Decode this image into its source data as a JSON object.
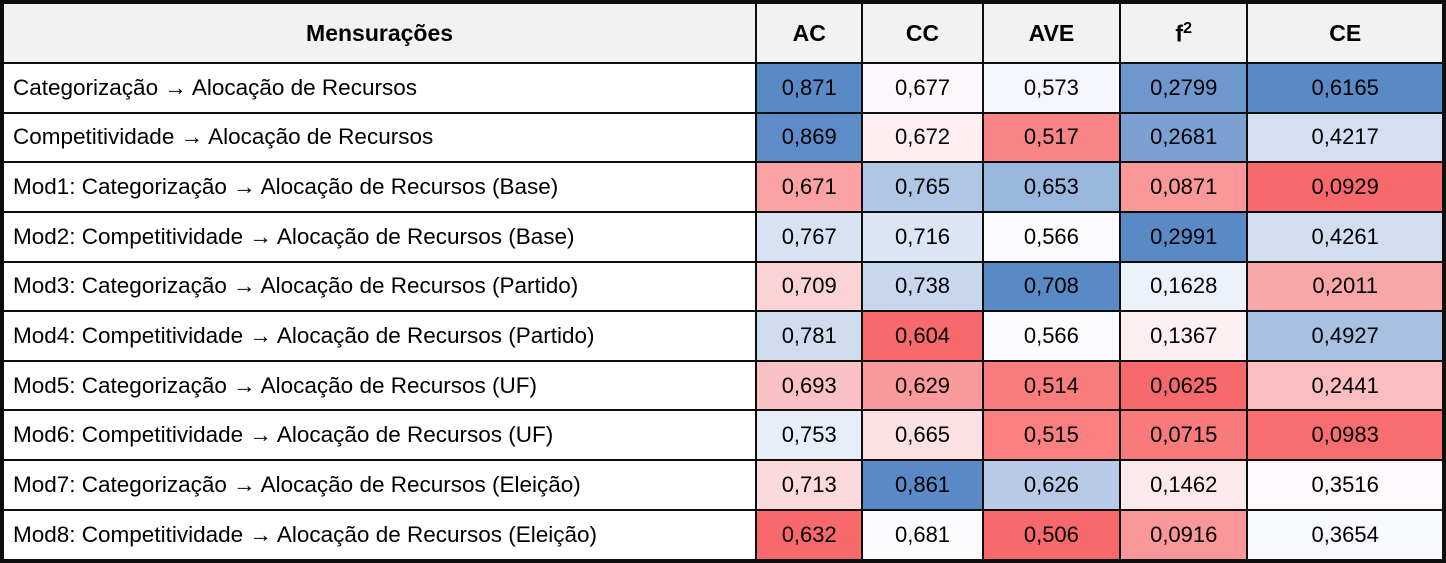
{
  "table": {
    "header": {
      "measure_label": "Mensurações",
      "columns": [
        "AC",
        "CC",
        "AVE",
        "f²",
        "CE"
      ]
    },
    "rows": [
      {
        "label": "Categorização → Alocação de Recursos",
        "cells": [
          {
            "text": "0,871",
            "bg": "#5A8AC6"
          },
          {
            "text": "0,677",
            "bg": "#FCF7FA"
          },
          {
            "text": "0,573",
            "bg": "#F4F6FC"
          },
          {
            "text": "0,2799",
            "bg": "#6E98CD"
          },
          {
            "text": "0,6165",
            "bg": "#5A8AC6"
          }
        ]
      },
      {
        "label": "Competitividade → Alocação de Recursos",
        "cells": [
          {
            "text": "0,869",
            "bg": "#5D8CC8"
          },
          {
            "text": "0,672",
            "bg": "#FCEEF1"
          },
          {
            "text": "0,517",
            "bg": "#F98486"
          },
          {
            "text": "0,2681",
            "bg": "#7BA0D1"
          },
          {
            "text": "0,4217",
            "bg": "#D4E0F1"
          }
        ]
      },
      {
        "label": "Mod1: Categorização → Alocação de Recursos (Base)",
        "cells": [
          {
            "text": "0,671",
            "bg": "#FAA2A4"
          },
          {
            "text": "0,765",
            "bg": "#AFC6E4"
          },
          {
            "text": "0,653",
            "bg": "#99B6DC"
          },
          {
            "text": "0,0871",
            "bg": "#F99799"
          },
          {
            "text": "0,0929",
            "bg": "#F8696B"
          }
        ]
      },
      {
        "label": "Mod2: Competitividade → Alocação de Recursos (Base)",
        "cells": [
          {
            "text": "0,767",
            "bg": "#D8E2F3"
          },
          {
            "text": "0,716",
            "bg": "#DBE5F3"
          },
          {
            "text": "0,566",
            "bg": "#FCFCFF"
          },
          {
            "text": "0,2991",
            "bg": "#5A8AC6"
          },
          {
            "text": "0,4261",
            "bg": "#D2DEF0"
          }
        ]
      },
      {
        "label": "Mod3: Categorização → Alocação de Recursos (Partido)",
        "cells": [
          {
            "text": "0,709",
            "bg": "#FBD3D6"
          },
          {
            "text": "0,738",
            "bg": "#C8D7ED"
          },
          {
            "text": "0,708",
            "bg": "#5A8AC6"
          },
          {
            "text": "0,1628",
            "bg": "#EDF2FA"
          },
          {
            "text": "0,2011",
            "bg": "#F9A6A9"
          }
        ]
      },
      {
        "label": "Mod4: Competitividade → Alocação de Recursos (Partido)",
        "cells": [
          {
            "text": "0,781",
            "bg": "#CFDCEF"
          },
          {
            "text": "0,604",
            "bg": "#F8696B"
          },
          {
            "text": "0,566",
            "bg": "#FCFCFF"
          },
          {
            "text": "0,1367",
            "bg": "#FCEFF2"
          },
          {
            "text": "0,4927",
            "bg": "#A8C1E1"
          }
        ]
      },
      {
        "label": "Mod5: Categorização → Alocação de Recursos (UF)",
        "cells": [
          {
            "text": "0,693",
            "bg": "#FAC2C4"
          },
          {
            "text": "0,629",
            "bg": "#F99A9C"
          },
          {
            "text": "0,514",
            "bg": "#F97D7F"
          },
          {
            "text": "0,0625",
            "bg": "#F8696B"
          },
          {
            "text": "0,2441",
            "bg": "#FABEC1"
          }
        ]
      },
      {
        "label": "Mod6: Competitividade → Alocação de Recursos (UF)",
        "cells": [
          {
            "text": "0,753",
            "bg": "#E8EEF8"
          },
          {
            "text": "0,665",
            "bg": "#FBE1E3"
          },
          {
            "text": "0,515",
            "bg": "#F97F81"
          },
          {
            "text": "0,0715",
            "bg": "#F87A7C"
          },
          {
            "text": "0,0983",
            "bg": "#F86D6F"
          }
        ]
      },
      {
        "label": "Mod7: Categorização → Alocação de Recursos (Eleição)",
        "cells": [
          {
            "text": "0,713",
            "bg": "#FBD9DC"
          },
          {
            "text": "0,861",
            "bg": "#5A8AC6"
          },
          {
            "text": "0,626",
            "bg": "#B7CBE6"
          },
          {
            "text": "0,1462",
            "bg": "#FBE9EC"
          },
          {
            "text": "0,3516",
            "bg": "#FCF8FB"
          }
        ]
      },
      {
        "label": "Mod8: Competitividade → Alocação de Recursos (Eleição)",
        "cells": [
          {
            "text": "0,632",
            "bg": "#F8696B"
          },
          {
            "text": "0,681",
            "bg": "#FCFBFE"
          },
          {
            "text": "0,506",
            "bg": "#F8696B"
          },
          {
            "text": "0,0916",
            "bg": "#F99799"
          },
          {
            "text": "0,3654",
            "bg": "#F8F9FD"
          }
        ]
      }
    ]
  },
  "chart_data": {
    "type": "heatmap",
    "title": "Mensurações",
    "columns": [
      "AC",
      "CC",
      "AVE",
      "f²",
      "CE"
    ],
    "rows": [
      "Categorização → Alocação de Recursos",
      "Competitividade → Alocação de Recursos",
      "Mod1: Categorização → Alocação de Recursos (Base)",
      "Mod2: Competitividade → Alocação de Recursos (Base)",
      "Mod3: Categorização → Alocação de Recursos (Partido)",
      "Mod4: Competitividade → Alocação de Recursos (Partido)",
      "Mod5: Categorização → Alocação de Recursos (UF)",
      "Mod6: Competitividade → Alocação de Recursos (UF)",
      "Mod7: Categorização → Alocação de Recursos (Eleição)",
      "Mod8: Competitividade → Alocação de Recursos (Eleição)"
    ],
    "values": [
      [
        0.871,
        0.677,
        0.573,
        0.2799,
        0.6165
      ],
      [
        0.869,
        0.672,
        0.517,
        0.2681,
        0.4217
      ],
      [
        0.671,
        0.765,
        0.653,
        0.0871,
        0.0929
      ],
      [
        0.767,
        0.716,
        0.566,
        0.2991,
        0.4261
      ],
      [
        0.709,
        0.738,
        0.708,
        0.1628,
        0.2011
      ],
      [
        0.781,
        0.604,
        0.566,
        0.1367,
        0.4927
      ],
      [
        0.693,
        0.629,
        0.514,
        0.0625,
        0.2441
      ],
      [
        0.753,
        0.665,
        0.515,
        0.0715,
        0.0983
      ],
      [
        0.713,
        0.861,
        0.626,
        0.1462,
        0.3516
      ],
      [
        0.632,
        0.681,
        0.506,
        0.0916,
        0.3654
      ]
    ],
    "decimal_separator": ",",
    "colormap": {
      "scope": "per-column",
      "low": "#F8696B",
      "mid": "#FCFCFF",
      "high": "#5A8AC6"
    },
    "legend_position": "none",
    "grid": "all-cell-borders"
  },
  "colors": {
    "header_bg": "#F2F2F2",
    "row_bg": "#FFFFFF",
    "border": "#0E0E0E",
    "text": "#000000",
    "scale_low": "#F8696B",
    "scale_mid": "#FCFCFF",
    "scale_high": "#5A8AC6"
  }
}
